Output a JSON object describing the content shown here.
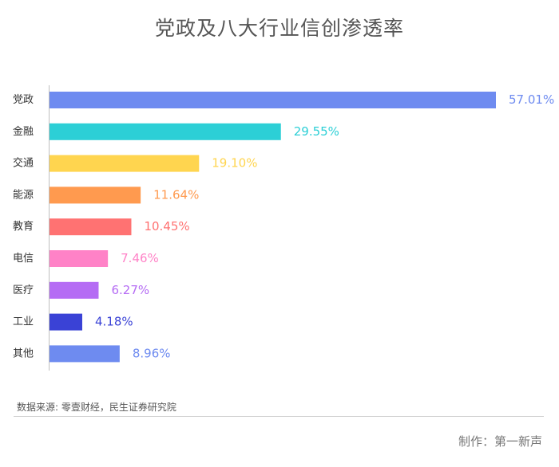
{
  "title": "党政及八大行业信创渗透率",
  "source": "数据来源: 零壹财经，民生证券研究院",
  "credit": "制作：第一新声",
  "chart_data": {
    "type": "bar",
    "orientation": "horizontal",
    "title": "党政及八大行业信创渗透率",
    "xlabel": "",
    "ylabel": "",
    "grid": false,
    "categories": [
      "党政",
      "金融",
      "交通",
      "能源",
      "教育",
      "电信",
      "医疗",
      "工业",
      "其他"
    ],
    "values": [
      57.01,
      29.55,
      19.1,
      11.64,
      10.45,
      7.46,
      6.27,
      4.18,
      8.96
    ],
    "value_labels": [
      "57.01%",
      "29.55%",
      "19.10%",
      "11.64%",
      "10.45%",
      "7.46%",
      "6.27%",
      "4.18%",
      "8.96%"
    ],
    "colors": [
      "#6e8bf0",
      "#2ccfd6",
      "#ffd54f",
      "#ff9a4f",
      "#ff7272",
      "#ff82c7",
      "#b56cf4",
      "#3a42d6",
      "#6e8bf0"
    ],
    "xlim": [
      0,
      57.01
    ]
  }
}
